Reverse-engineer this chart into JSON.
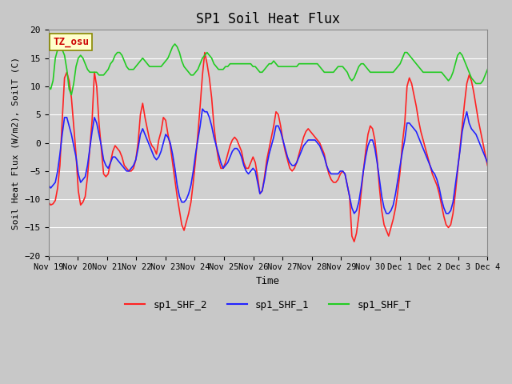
{
  "title": "SP1 Soil Heat Flux",
  "xlabel": "Time",
  "ylabel": "Soil Heat Flux (W/m2), SoilT (C)",
  "ylim": [
    -20,
    20
  ],
  "yticks": [
    -20,
    -15,
    -10,
    -5,
    0,
    5,
    10,
    15,
    20
  ],
  "legend_labels": [
    "sp1_SHF_2",
    "sp1_SHF_1",
    "sp1_SHF_T"
  ],
  "legend_colors": [
    "#ff2222",
    "#2222ff",
    "#22cc22"
  ],
  "tz_label": "TZ_osu",
  "tz_bg": "#ffffcc",
  "tz_fg": "#cc0000",
  "x_tick_positions": [
    0,
    1,
    2,
    3,
    4,
    5,
    6,
    7,
    8,
    9,
    10,
    11,
    12,
    13,
    14,
    15
  ],
  "x_tick_labels": [
    "Nov 19",
    "Nov 20",
    "Nov 21",
    "Nov 22",
    "Nov 23",
    "Nov 24",
    "Nov 25",
    "Nov 26",
    "Nov 27",
    "Nov 28",
    "Nov 29",
    "Nov 30",
    "Dec 1",
    "Dec 2",
    "Dec 3",
    "Dec 4"
  ],
  "shf2_data": [
    -10.5,
    -11.0,
    -10.8,
    -10.2,
    -8.0,
    -4.0,
    4.0,
    11.5,
    12.5,
    11.0,
    8.0,
    3.0,
    -2.0,
    -8.5,
    -11.0,
    -10.5,
    -9.5,
    -6.0,
    -1.0,
    4.0,
    12.5,
    10.0,
    3.5,
    -1.0,
    -5.5,
    -6.0,
    -5.5,
    -3.5,
    -1.5,
    -0.5,
    -1.0,
    -1.5,
    -2.5,
    -4.0,
    -4.5,
    -5.0,
    -5.0,
    -4.5,
    -3.0,
    0.0,
    5.0,
    7.0,
    4.5,
    2.5,
    0.5,
    -0.5,
    -1.0,
    -2.0,
    0.5,
    2.0,
    4.5,
    4.0,
    1.5,
    -0.5,
    -3.5,
    -6.5,
    -9.5,
    -12.0,
    -14.5,
    -15.5,
    -14.0,
    -12.5,
    -10.5,
    -7.0,
    -3.0,
    1.5,
    6.5,
    12.0,
    16.0,
    14.0,
    11.5,
    8.0,
    3.0,
    -0.5,
    -3.0,
    -4.5,
    -4.5,
    -3.5,
    -2.0,
    -0.5,
    0.5,
    1.0,
    0.5,
    -0.5,
    -1.5,
    -3.5,
    -4.5,
    -4.5,
    -3.5,
    -2.5,
    -3.5,
    -6.0,
    -9.0,
    -8.5,
    -6.0,
    -3.0,
    -1.0,
    1.0,
    3.0,
    5.5,
    5.0,
    3.0,
    0.5,
    -1.5,
    -3.0,
    -4.5,
    -5.0,
    -4.5,
    -3.5,
    -2.0,
    -0.5,
    1.0,
    2.0,
    2.5,
    2.0,
    1.5,
    1.0,
    0.5,
    0.0,
    -1.0,
    -2.0,
    -4.0,
    -5.5,
    -6.5,
    -7.0,
    -7.0,
    -6.5,
    -5.5,
    -5.0,
    -5.5,
    -7.5,
    -9.5,
    -16.5,
    -17.5,
    -16.0,
    -13.0,
    -9.0,
    -5.0,
    -1.5,
    1.5,
    3.0,
    2.5,
    0.5,
    -3.0,
    -8.0,
    -12.0,
    -14.5,
    -15.5,
    -16.5,
    -15.0,
    -13.5,
    -11.5,
    -8.5,
    -5.0,
    0.0,
    3.5,
    10.0,
    11.5,
    10.5,
    8.5,
    6.5,
    4.0,
    2.0,
    0.5,
    -1.0,
    -2.5,
    -4.0,
    -5.5,
    -6.5,
    -7.5,
    -9.0,
    -11.0,
    -13.0,
    -14.5,
    -15.0,
    -14.5,
    -12.5,
    -9.0,
    -5.0,
    -1.0,
    3.0,
    7.0,
    10.5,
    12.0,
    11.0,
    9.0,
    6.5,
    4.0,
    2.0,
    0.0,
    -2.0,
    -4.0
  ],
  "shf1_data": [
    -7.5,
    -8.0,
    -7.5,
    -7.0,
    -5.0,
    -2.0,
    1.5,
    4.5,
    4.5,
    3.0,
    1.5,
    -0.5,
    -2.5,
    -5.5,
    -7.0,
    -6.5,
    -6.0,
    -4.0,
    -1.0,
    2.0,
    4.5,
    3.5,
    1.5,
    -0.5,
    -3.0,
    -4.0,
    -4.5,
    -3.5,
    -2.5,
    -2.5,
    -3.0,
    -3.5,
    -4.0,
    -4.5,
    -5.0,
    -5.0,
    -4.5,
    -4.0,
    -3.0,
    -1.0,
    1.5,
    2.5,
    1.5,
    0.5,
    -0.5,
    -1.5,
    -2.5,
    -3.0,
    -2.5,
    -1.5,
    0.0,
    1.5,
    1.0,
    0.0,
    -2.0,
    -4.5,
    -7.5,
    -9.5,
    -10.5,
    -10.5,
    -10.0,
    -9.0,
    -7.5,
    -5.0,
    -2.0,
    0.5,
    3.0,
    6.0,
    5.5,
    5.5,
    4.5,
    3.0,
    1.0,
    -0.5,
    -2.0,
    -3.5,
    -4.5,
    -4.0,
    -3.5,
    -2.5,
    -1.5,
    -1.0,
    -1.0,
    -1.5,
    -2.5,
    -4.0,
    -5.0,
    -5.5,
    -5.0,
    -4.5,
    -5.0,
    -7.0,
    -9.0,
    -8.5,
    -6.5,
    -4.0,
    -2.0,
    -0.5,
    1.0,
    3.0,
    3.0,
    2.0,
    0.5,
    -1.0,
    -2.5,
    -3.5,
    -4.0,
    -4.0,
    -3.5,
    -2.5,
    -1.5,
    -0.5,
    0.0,
    0.5,
    0.5,
    0.5,
    0.5,
    0.0,
    -0.5,
    -1.5,
    -2.5,
    -4.0,
    -5.0,
    -5.5,
    -5.5,
    -5.5,
    -5.5,
    -5.0,
    -5.0,
    -5.5,
    -7.5,
    -9.5,
    -11.5,
    -12.5,
    -12.0,
    -10.5,
    -8.0,
    -5.0,
    -2.5,
    -0.5,
    0.5,
    0.5,
    -1.0,
    -3.5,
    -6.5,
    -9.5,
    -11.5,
    -12.5,
    -12.5,
    -12.0,
    -11.0,
    -9.0,
    -6.5,
    -4.0,
    -1.5,
    0.5,
    3.5,
    3.5,
    3.0,
    2.5,
    2.0,
    1.0,
    0.0,
    -1.0,
    -2.0,
    -3.0,
    -4.0,
    -5.0,
    -5.5,
    -6.5,
    -8.0,
    -10.0,
    -11.5,
    -12.5,
    -12.5,
    -12.0,
    -10.5,
    -7.5,
    -4.5,
    -1.5,
    2.0,
    4.0,
    5.5,
    3.5,
    2.5,
    2.0,
    1.5,
    0.5,
    -0.5,
    -1.5,
    -2.5,
    -3.5
  ],
  "shft_data": [
    10.0,
    9.5,
    11.0,
    15.0,
    16.5,
    17.0,
    16.5,
    15.5,
    13.0,
    9.5,
    8.5,
    10.5,
    13.5,
    15.0,
    15.5,
    15.0,
    14.0,
    13.0,
    12.5,
    12.5,
    12.5,
    12.5,
    12.0,
    12.0,
    12.0,
    12.5,
    13.0,
    14.0,
    14.5,
    15.5,
    16.0,
    16.0,
    15.5,
    14.5,
    13.5,
    13.0,
    13.0,
    13.0,
    13.5,
    14.0,
    14.5,
    15.0,
    14.5,
    14.0,
    13.5,
    13.5,
    13.5,
    13.5,
    13.5,
    13.5,
    14.0,
    14.5,
    15.0,
    16.0,
    17.0,
    17.5,
    17.0,
    16.0,
    14.5,
    13.5,
    13.0,
    12.5,
    12.0,
    12.0,
    12.5,
    13.0,
    14.0,
    15.0,
    15.5,
    16.0,
    15.5,
    15.0,
    14.0,
    13.5,
    13.0,
    13.0,
    13.0,
    13.5,
    13.5,
    14.0,
    14.0,
    14.0,
    14.0,
    14.0,
    14.0,
    14.0,
    14.0,
    14.0,
    14.0,
    13.5,
    13.5,
    13.0,
    12.5,
    12.5,
    13.0,
    13.5,
    14.0,
    14.0,
    14.5,
    14.0,
    13.5,
    13.5,
    13.5,
    13.5,
    13.5,
    13.5,
    13.5,
    13.5,
    13.5,
    14.0,
    14.0,
    14.0,
    14.0,
    14.0,
    14.0,
    14.0,
    14.0,
    14.0,
    13.5,
    13.0,
    12.5,
    12.5,
    12.5,
    12.5,
    12.5,
    13.0,
    13.5,
    13.5,
    13.5,
    13.0,
    12.5,
    11.5,
    11.0,
    11.5,
    12.5,
    13.5,
    14.0,
    14.0,
    13.5,
    13.0,
    12.5,
    12.5,
    12.5,
    12.5,
    12.5,
    12.5,
    12.5,
    12.5,
    12.5,
    12.5,
    12.5,
    13.0,
    13.5,
    14.0,
    15.0,
    16.0,
    16.0,
    15.5,
    15.0,
    14.5,
    14.0,
    13.5,
    13.0,
    12.5,
    12.5,
    12.5,
    12.5,
    12.5,
    12.5,
    12.5,
    12.5,
    12.5,
    12.0,
    11.5,
    11.0,
    11.5,
    12.5,
    14.0,
    15.5,
    16.0,
    15.5,
    14.5,
    13.5,
    12.5,
    11.5,
    11.0,
    10.5,
    10.5,
    10.5,
    11.0,
    12.0,
    13.0
  ]
}
